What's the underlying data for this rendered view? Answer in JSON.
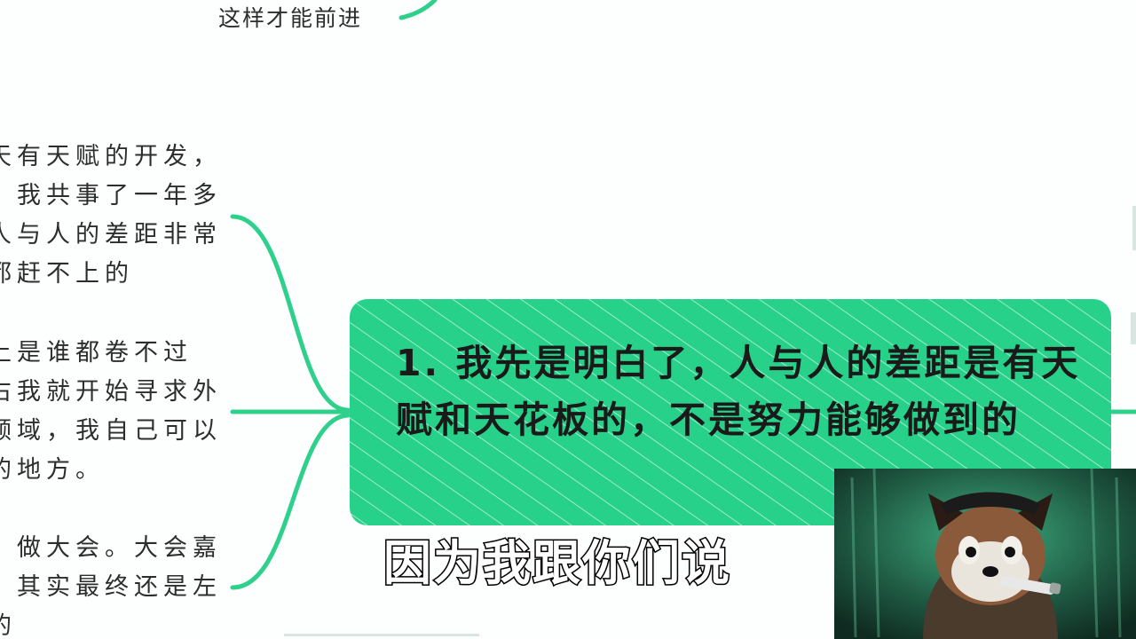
{
  "mindmap": {
    "top_text": "这样才能前进",
    "left_block_a": [
      "天有天赋的开发，",
      "。我共事了一年多",
      "人与人的差距非常",
      "都赶不上的"
    ],
    "left_block_b": [
      "上是谁都卷不过",
      "右我就开始寻求外",
      "领域，我自己可以",
      "的地方。"
    ],
    "left_block_c": [
      "，做大会。大会嘉",
      "。其实最终还是左",
      "的"
    ],
    "main_node_text": "1. 我先是明白了，人与人的差距是有天赋和天花板的，不是努力能够做到的"
  },
  "subtitle": "因为我跟你们说",
  "colors": {
    "node_green": "#27d18a",
    "connector_green": "#2fd08c",
    "text_dark": "#2d2d2d"
  },
  "webcam": {
    "subject_icon": "red-panda-avatar"
  }
}
